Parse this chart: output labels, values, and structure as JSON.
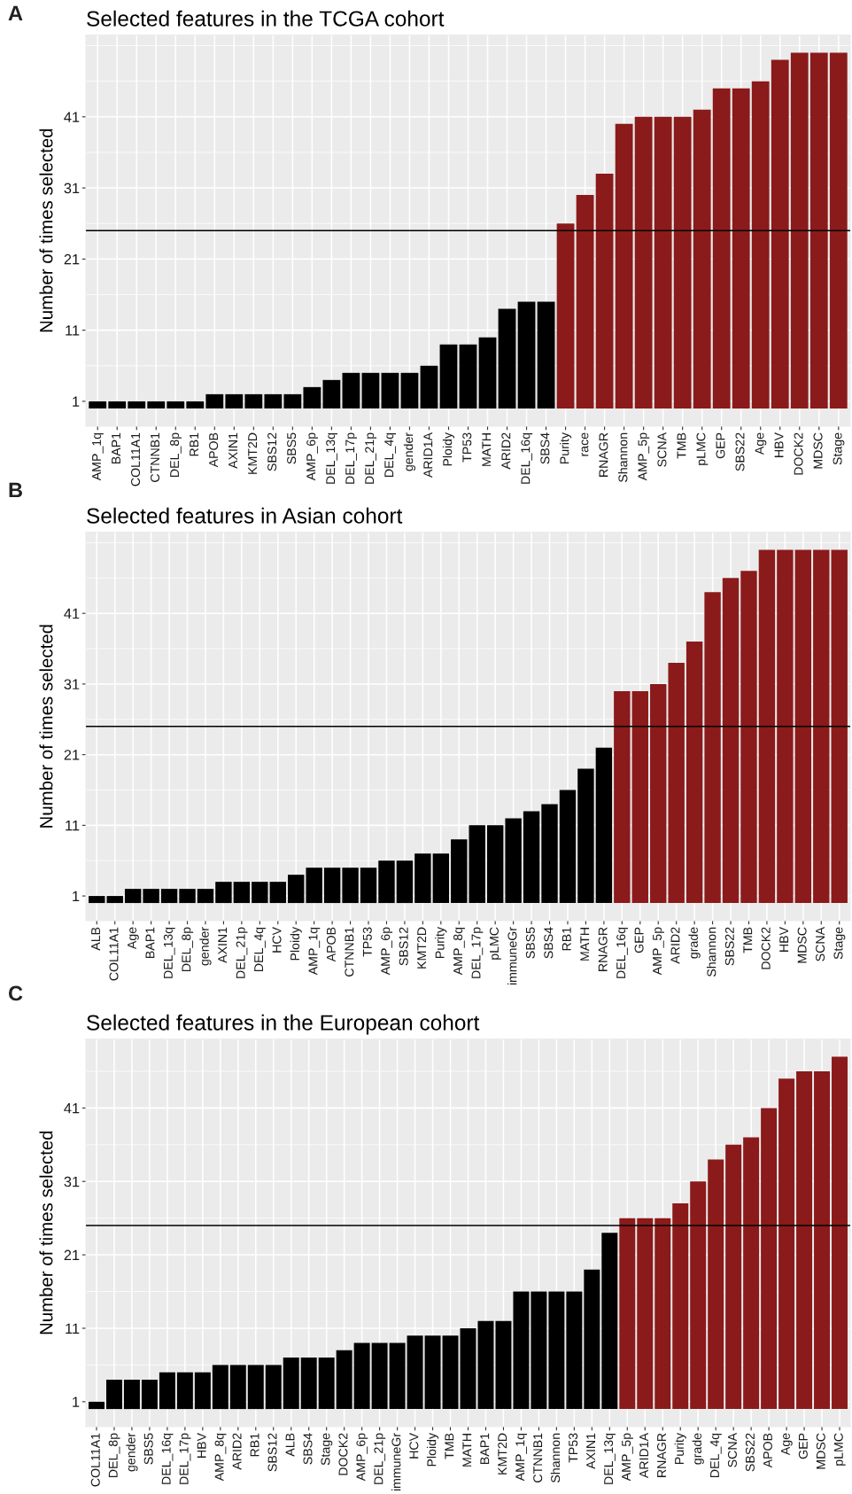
{
  "chart_data": [
    {
      "type": "bar",
      "title": "Selected features in the TCGA cohort",
      "ylabel": "Number of times selected",
      "annotations": [
        "A"
      ],
      "categories": [
        "AMP_1q",
        "BAP1",
        "COL11A1",
        "CTNNB1",
        "DEL_8p",
        "RB1",
        "APOB",
        "AXIN1",
        "KMT2D",
        "SBS12",
        "SBS5",
        "AMP_6p",
        "DEL_13q",
        "DEL_17p",
        "DEL_21p",
        "DEL_4q",
        "gender",
        "ARID1A",
        "Ploidy",
        "TP53",
        "MATH",
        "ARID2",
        "DEL_16q",
        "SBS4",
        "Purity",
        "race",
        "RNAGR",
        "Shannon",
        "AMP_5p",
        "SCNA",
        "TMB",
        "pLMC",
        "GEP",
        "SBS22",
        "Age",
        "HBV",
        "DOCK2",
        "MDSC",
        "Stage"
      ],
      "values": [
        1,
        1,
        1,
        1,
        1,
        1,
        2,
        2,
        2,
        2,
        2,
        3,
        4,
        5,
        5,
        5,
        5,
        6,
        9,
        9,
        10,
        14,
        15,
        15,
        26,
        30,
        33,
        40,
        41,
        41,
        41,
        42,
        45,
        45,
        46,
        49,
        50,
        50,
        50
      ],
      "colors": [
        "#000000",
        "#000000",
        "#000000",
        "#000000",
        "#000000",
        "#000000",
        "#000000",
        "#000000",
        "#000000",
        "#000000",
        "#000000",
        "#000000",
        "#000000",
        "#000000",
        "#000000",
        "#000000",
        "#000000",
        "#000000",
        "#000000",
        "#000000",
        "#000000",
        "#000000",
        "#000000",
        "#000000",
        "#8b1a1a",
        "#8b1a1a",
        "#8b1a1a",
        "#8b1a1a",
        "#8b1a1a",
        "#8b1a1a",
        "#8b1a1a",
        "#8b1a1a",
        "#8b1a1a",
        "#8b1a1a",
        "#8b1a1a",
        "#8b1a1a",
        "#8b1a1a",
        "#8b1a1a",
        "#8b1a1a"
      ],
      "ylim": [
        -2.5,
        52.5
      ],
      "yticks": [
        1,
        11,
        21,
        31,
        41
      ],
      "grid": true,
      "ref_lines": [
        {
          "axis": "y",
          "value": 25,
          "color": "#000000"
        }
      ]
    },
    {
      "type": "bar",
      "title": "Selected features in Asian cohort",
      "ylabel": "Number of times selected",
      "annotations": [
        "B"
      ],
      "categories": [
        "ALB",
        "COL11A1",
        "Age",
        "BAP1",
        "DEL_13q",
        "DEL_8p",
        "gender",
        "AXIN1",
        "DEL_21p",
        "DEL_4q",
        "HCV",
        "Ploidy",
        "AMP_1q",
        "APOB",
        "CTNNB1",
        "TP53",
        "AMP_6p",
        "SBS12",
        "KMT2D",
        "Purity",
        "AMP_8q",
        "DEL_17p",
        "pLMC",
        "immuneGr",
        "SBS5",
        "SBS4",
        "RB1",
        "MATH",
        "RNAGR",
        "DEL_16q",
        "GEP",
        "AMP_5p",
        "ARID2",
        "grade",
        "Shannon",
        "SBS22",
        "TMB",
        "DOCK2",
        "HBV",
        "MDSC",
        "SCNA",
        "Stage"
      ],
      "values": [
        1,
        1,
        2,
        2,
        2,
        2,
        2,
        3,
        3,
        3,
        3,
        4,
        5,
        5,
        5,
        5,
        6,
        6,
        7,
        7,
        9,
        11,
        11,
        12,
        13,
        14,
        16,
        19,
        22,
        30,
        30,
        31,
        34,
        37,
        44,
        46,
        47,
        50,
        50,
        50,
        50,
        50
      ],
      "colors": [
        "#000000",
        "#000000",
        "#000000",
        "#000000",
        "#000000",
        "#000000",
        "#000000",
        "#000000",
        "#000000",
        "#000000",
        "#000000",
        "#000000",
        "#000000",
        "#000000",
        "#000000",
        "#000000",
        "#000000",
        "#000000",
        "#000000",
        "#000000",
        "#000000",
        "#000000",
        "#000000",
        "#000000",
        "#000000",
        "#000000",
        "#000000",
        "#000000",
        "#000000",
        "#8b1a1a",
        "#8b1a1a",
        "#8b1a1a",
        "#8b1a1a",
        "#8b1a1a",
        "#8b1a1a",
        "#8b1a1a",
        "#8b1a1a",
        "#8b1a1a",
        "#8b1a1a",
        "#8b1a1a",
        "#8b1a1a",
        "#8b1a1a"
      ],
      "ylim": [
        -2.5,
        52.5
      ],
      "yticks": [
        1,
        11,
        21,
        31,
        41
      ],
      "grid": true,
      "ref_lines": [
        {
          "axis": "y",
          "value": 25,
          "color": "#000000"
        }
      ]
    },
    {
      "type": "bar",
      "title": "Selected features in the European cohort",
      "ylabel": "Number of times selected",
      "annotations": [
        "C"
      ],
      "categories": [
        "COL11A1",
        "DEL_8p",
        "gender",
        "SBS5",
        "DEL_16q",
        "DEL_17p",
        "HBV",
        "AMP_8q",
        "ARID2",
        "RB1",
        "SBS12",
        "ALB",
        "SBS4",
        "Stage",
        "DOCK2",
        "AMP_6p",
        "DEL_21p",
        "immuneGr",
        "HCV",
        "Ploidy",
        "TMB",
        "MATH",
        "BAP1",
        "KMT2D",
        "AMP_1q",
        "CTNNB1",
        "Shannon",
        "TP53",
        "AXIN1",
        "DEL_13q",
        "AMP_5p",
        "ARID1A",
        "RNAGR",
        "Purity",
        "grade",
        "DEL_4q",
        "SCNA",
        "SBS22",
        "APOB",
        "Age",
        "GEP",
        "MDSC",
        "pLMC"
      ],
      "values": [
        1,
        4,
        4,
        4,
        5,
        5,
        5,
        6,
        6,
        6,
        6,
        7,
        7,
        7,
        8,
        9,
        9,
        9,
        10,
        10,
        10,
        11,
        12,
        12,
        16,
        16,
        16,
        16,
        19,
        24,
        26,
        26,
        26,
        28,
        31,
        34,
        36,
        37,
        41,
        45,
        46,
        46,
        48
      ],
      "colors": [
        "#000000",
        "#000000",
        "#000000",
        "#000000",
        "#000000",
        "#000000",
        "#000000",
        "#000000",
        "#000000",
        "#000000",
        "#000000",
        "#000000",
        "#000000",
        "#000000",
        "#000000",
        "#000000",
        "#000000",
        "#000000",
        "#000000",
        "#000000",
        "#000000",
        "#000000",
        "#000000",
        "#000000",
        "#000000",
        "#000000",
        "#000000",
        "#000000",
        "#000000",
        "#000000",
        "#8b1a1a",
        "#8b1a1a",
        "#8b1a1a",
        "#8b1a1a",
        "#8b1a1a",
        "#8b1a1a",
        "#8b1a1a",
        "#8b1a1a",
        "#8b1a1a",
        "#8b1a1a",
        "#8b1a1a",
        "#8b1a1a",
        "#8b1a1a"
      ],
      "ylim": [
        -2.4,
        50.4
      ],
      "yticks": [
        1,
        11,
        21,
        31,
        41
      ],
      "grid": true,
      "ref_lines": [
        {
          "axis": "y",
          "value": 25,
          "color": "#000000"
        }
      ]
    }
  ]
}
